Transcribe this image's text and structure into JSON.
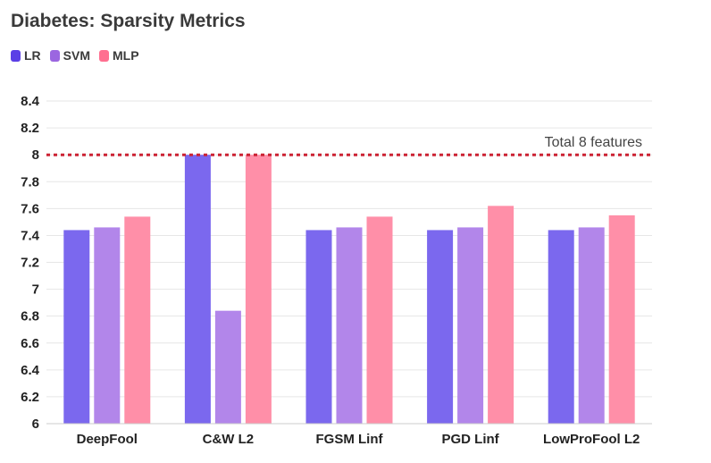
{
  "chart_data": {
    "type": "bar",
    "title": "Diabetes: Sparsity Metrics",
    "categories": [
      "DeepFool",
      "C&W L2",
      "FGSM Linf",
      "PGD Linf",
      "LowProFool L2"
    ],
    "series": [
      {
        "name": "LR",
        "color": "#7b68ee",
        "values": [
          7.44,
          8.0,
          7.44,
          7.44,
          7.44
        ]
      },
      {
        "name": "SVM",
        "color": "#b286ea",
        "values": [
          7.46,
          6.84,
          7.46,
          7.46,
          7.46
        ]
      },
      {
        "name": "MLP",
        "color": "#ff8fa8",
        "values": [
          7.54,
          8.0,
          7.54,
          7.62,
          7.55
        ]
      }
    ],
    "ylim": [
      6,
      8.5
    ],
    "yticks": [
      "6",
      "6.2",
      "6.4",
      "6.6",
      "6.8",
      "7",
      "7.2",
      "7.4",
      "7.6",
      "7.8",
      "8",
      "8.2",
      "8.4"
    ],
    "reference_line": {
      "value": 8,
      "label": "Total 8 features",
      "color": "#cc2233"
    },
    "grid": true,
    "legend": "top-left",
    "xlabel": "",
    "ylabel": ""
  },
  "legend_colors": {
    "LR": "#5b3fe6",
    "SVM": "#9b66e0",
    "MLP": "#ff6f90"
  }
}
